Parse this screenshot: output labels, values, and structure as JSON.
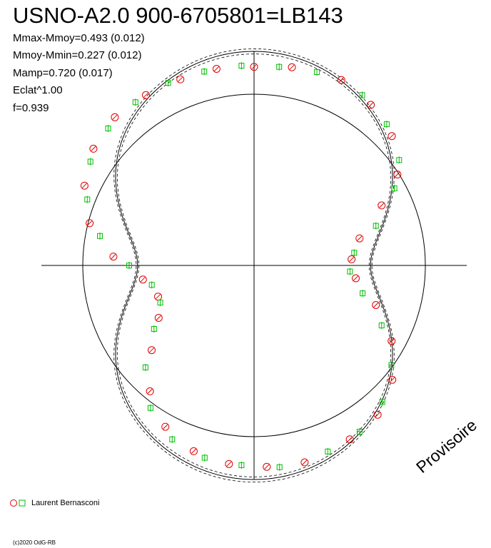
{
  "title": "USNO-A2.0 900-6705801=LB143",
  "params": [
    "Mmax-Mmoy=0.493 (0.012)",
    "Mmoy-Mmin=0.227 (0.012)",
    "Mamp=0.720 (0.017)",
    "Eclat^1.00",
    "f=0.939"
  ],
  "watermark": "Provisoire",
  "legend": {
    "label": "Laurent Bernasconi"
  },
  "copyright": "(c)2020 OdG-RB",
  "colors": {
    "observed_a": "#e00000",
    "observed_b": "#00c000",
    "axes": "#000000"
  },
  "chart_data": {
    "type": "scatter",
    "projection": "polar",
    "description_of_axes": "angle = rotational phase, radius = brightness (Eclat^1.00)",
    "reference_circle_radius": 1.0,
    "model": {
      "mmax_mmoy": 0.493,
      "mmoy_mmin": 0.227,
      "mamp": 0.72,
      "f": 0.939
    },
    "series": [
      {
        "marker": "circle",
        "color": "#e00000",
        "phase": [
          0.0,
          0.03,
          0.07,
          0.1,
          0.13,
          0.16,
          0.18,
          0.21,
          0.24,
          0.27,
          0.3,
          0.33,
          0.36,
          0.39,
          0.42,
          0.46,
          0.49,
          0.52,
          0.55,
          0.58,
          0.61,
          0.64,
          0.67,
          0.7,
          0.73,
          0.76,
          0.79,
          0.82,
          0.85,
          0.88,
          0.91,
          0.94,
          0.97
        ],
        "radius": [
          1.24,
          1.26,
          1.28,
          1.24,
          1.18,
          1.06,
          0.88,
          0.68,
          0.61,
          0.64,
          0.8,
          0.98,
          1.12,
          1.21,
          1.24,
          1.27,
          1.26,
          1.25,
          1.22,
          1.15,
          1.02,
          0.83,
          0.68,
          0.63,
          0.7,
          0.88,
          1.06,
          1.17,
          1.24,
          1.27,
          1.26,
          1.25,
          1.25
        ]
      },
      {
        "marker": "square",
        "color": "#00c000",
        "phase": [
          0.02,
          0.05,
          0.09,
          0.12,
          0.15,
          0.17,
          0.2,
          0.23,
          0.26,
          0.29,
          0.32,
          0.35,
          0.38,
          0.41,
          0.44,
          0.48,
          0.51,
          0.54,
          0.57,
          0.6,
          0.63,
          0.66,
          0.69,
          0.72,
          0.75,
          0.78,
          0.81,
          0.84,
          0.87,
          0.9,
          0.93,
          0.96,
          0.99
        ],
        "radius": [
          1.25,
          1.27,
          1.26,
          1.21,
          1.12,
          1.0,
          0.8,
          0.63,
          0.6,
          0.7,
          0.88,
          1.06,
          1.17,
          1.23,
          1.25,
          1.27,
          1.25,
          1.24,
          1.2,
          1.1,
          0.93,
          0.74,
          0.63,
          0.65,
          0.78,
          0.98,
          1.12,
          1.21,
          1.25,
          1.26,
          1.26,
          1.25,
          1.25
        ]
      }
    ],
    "xlabel": "",
    "ylabel": "",
    "grid": false
  }
}
